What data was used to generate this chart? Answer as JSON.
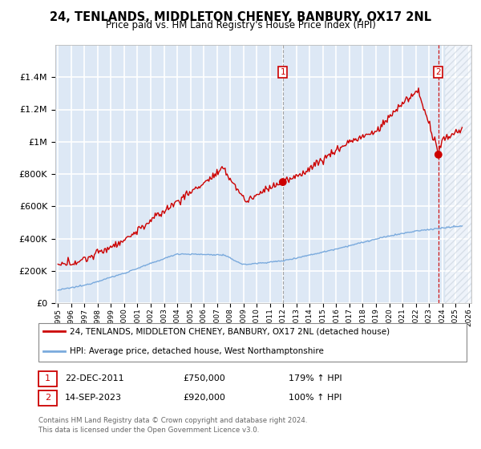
{
  "title": "24, TENLANDS, MIDDLETON CHENEY, BANBURY, OX17 2NL",
  "subtitle": "Price paid vs. HM Land Registry's House Price Index (HPI)",
  "ylim": [
    0,
    1600000
  ],
  "yticks": [
    0,
    200000,
    400000,
    600000,
    800000,
    1000000,
    1200000,
    1400000
  ],
  "ytick_labels": [
    "£0",
    "£200K",
    "£400K",
    "£600K",
    "£800K",
    "£1M",
    "£1.2M",
    "£1.4M"
  ],
  "x_start_year": 1995,
  "x_end_year": 2026,
  "transaction1_date": 2011.97,
  "transaction1_price": 750000,
  "transaction1_label": "1",
  "transaction1_text": "22-DEC-2011",
  "transaction1_amount": "£750,000",
  "transaction1_hpi": "179% ↑ HPI",
  "transaction2_date": 2023.71,
  "transaction2_price": 920000,
  "transaction2_label": "2",
  "transaction2_text": "14-SEP-2023",
  "transaction2_amount": "£920,000",
  "transaction2_hpi": "100% ↑ HPI",
  "red_line_color": "#cc0000",
  "blue_line_color": "#7aaadd",
  "shade_color": "#dde8f5",
  "hatch_color": "#c0ccd8",
  "grid_color": "#ffffff",
  "legend_line1": "24, TENLANDS, MIDDLETON CHENEY, BANBURY, OX17 2NL (detached house)",
  "legend_line2": "HPI: Average price, detached house, West Northamptonshire",
  "footer1": "Contains HM Land Registry data © Crown copyright and database right 2024.",
  "footer2": "This data is licensed under the Open Government Licence v3.0."
}
